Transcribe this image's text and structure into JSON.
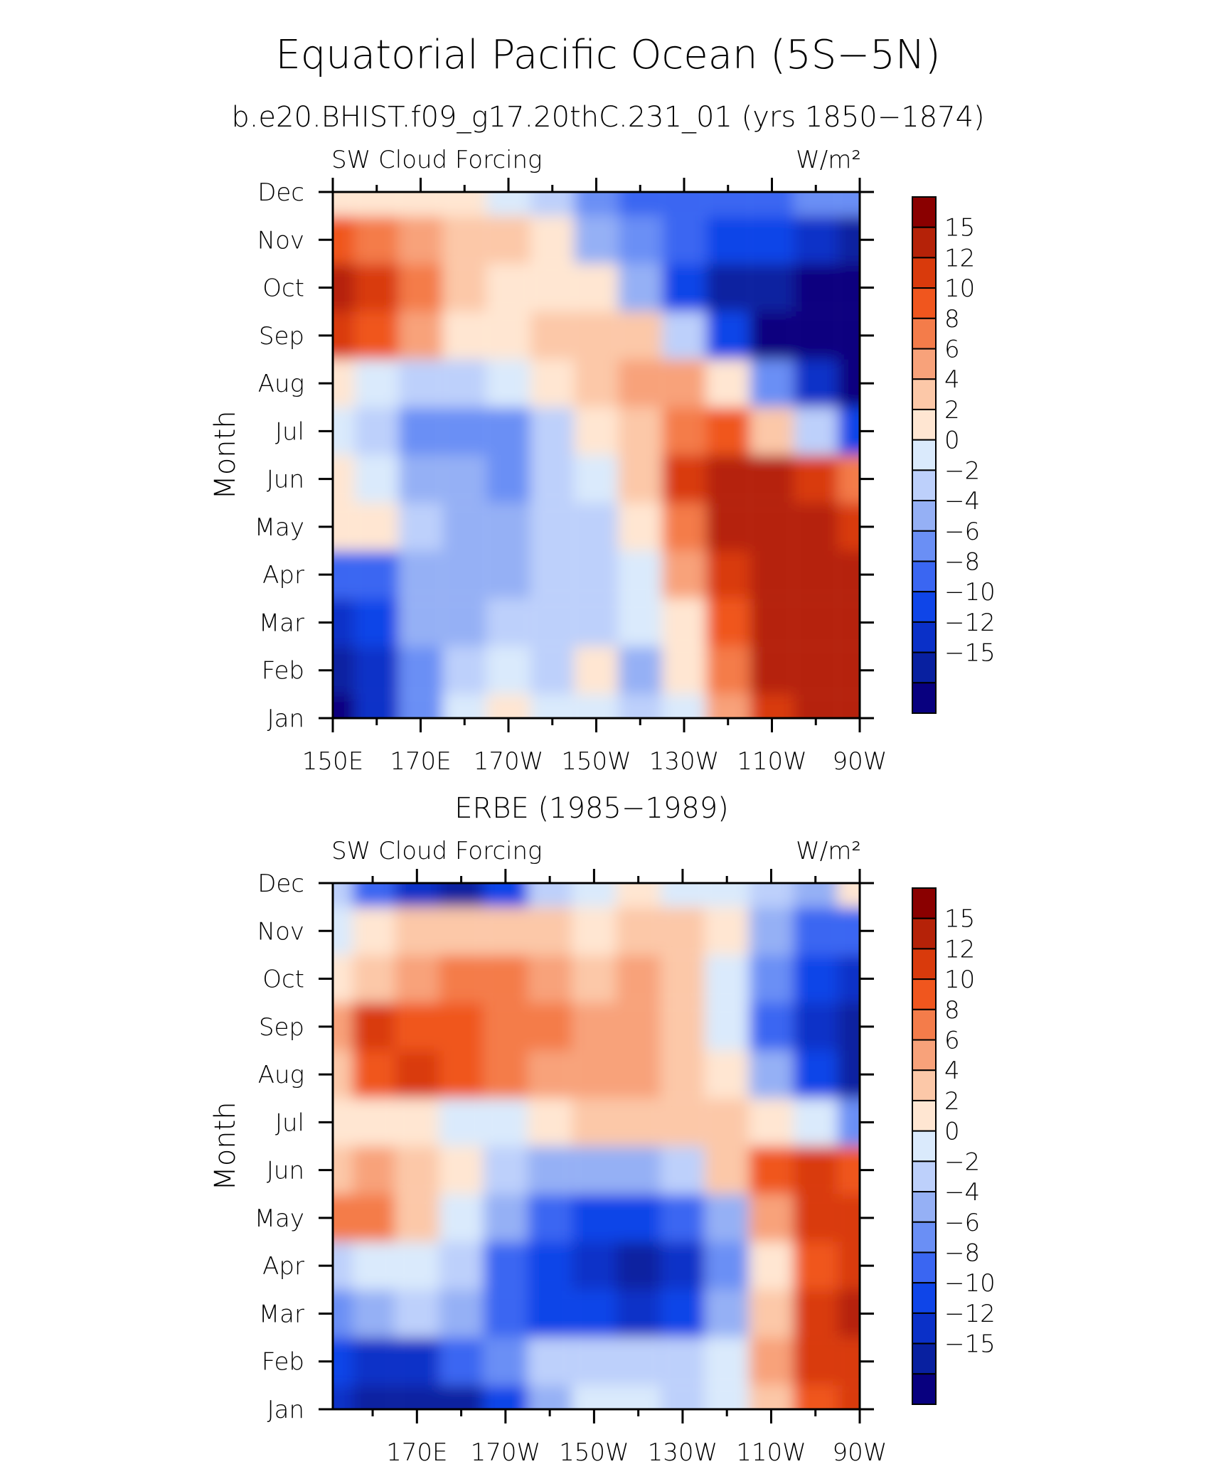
{
  "figure": {
    "title": "Equatorial Pacific Ocean (5S−5N)",
    "subtitle": "b.e20.BHIST.f09_g17.20thC.231_01 (yrs 1850−1874)",
    "panel2_title": "ERBE (1985−1989)"
  },
  "colors": {
    "levels": [
      "#08007f",
      "#0820a0",
      "#0a30c8",
      "#0f45e8",
      "#3a66f2",
      "#6a8ff5",
      "#95b0f5",
      "#bdd0fb",
      "#daeafc",
      "#ffe6d2",
      "#fcc8a8",
      "#f8a27a",
      "#f47c4a",
      "#f0561e",
      "#d93a0c",
      "#b52208",
      "#8a0000"
    ]
  },
  "chart_data": [
    {
      "type": "heatmap",
      "panel_title": "",
      "left_label": "SW Cloud Forcing",
      "right_label": "W/m²",
      "ylabel": "Month",
      "xlabel": "",
      "y_ticks": [
        "Jan",
        "Feb",
        "Mar",
        "Apr",
        "May",
        "Jun",
        "Jul",
        "Aug",
        "Sep",
        "Oct",
        "Nov",
        "Dec"
      ],
      "x_ticks": [
        "150E",
        "170E",
        "170W",
        "150W",
        "130W",
        "110W",
        "90W"
      ],
      "x_tick_lon": [
        150,
        170,
        190,
        210,
        230,
        250,
        270
      ],
      "xlim": [
        150,
        270
      ],
      "colorbar_labels": [
        "15",
        "12",
        "10",
        "8",
        "6",
        "4",
        "2",
        "0",
        "−2",
        "−4",
        "−6",
        "−8",
        "−10",
        "−12",
        "−15"
      ],
      "lon": [
        150,
        160,
        170,
        180,
        190,
        200,
        210,
        220,
        230,
        240,
        250,
        260,
        270
      ],
      "months": [
        "Jan",
        "Feb",
        "Mar",
        "Apr",
        "May",
        "Jun",
        "Jul",
        "Aug",
        "Sep",
        "Oct",
        "Nov",
        "Dec"
      ],
      "values": [
        [
          -16,
          -11,
          -6,
          1,
          2,
          0,
          1,
          -1,
          1,
          7,
          13,
          17,
          18
        ],
        [
          -15,
          -12,
          -5,
          -1,
          1,
          -1,
          2,
          -3,
          2,
          9,
          15,
          17,
          18
        ],
        [
          -11,
          -9,
          -4,
          -3,
          -2,
          -2,
          -1,
          0,
          3,
          11,
          16,
          17,
          17
        ],
        [
          -7,
          -8,
          -3,
          -3,
          -4,
          -2,
          -1,
          1,
          6,
          13,
          18,
          18,
          16
        ],
        [
          3,
          2,
          -2,
          -3,
          -4,
          -2,
          -1,
          2,
          9,
          16,
          18,
          17,
          13
        ],
        [
          3,
          1,
          -3,
          -4,
          -5,
          -1,
          1,
          5,
          12,
          17,
          16,
          13,
          8
        ],
        [
          1,
          -2,
          -5,
          -6,
          -6,
          -1,
          2,
          5,
          9,
          10,
          5,
          -2,
          -10
        ],
        [
          3,
          1,
          -1,
          -1,
          1,
          2,
          4,
          6,
          7,
          2,
          -6,
          -12,
          -16
        ],
        [
          14,
          11,
          6,
          3,
          2,
          4,
          5,
          4,
          -2,
          -10,
          -16,
          -17,
          -17
        ],
        [
          17,
          13,
          8,
          4,
          3,
          3,
          2,
          -3,
          -9,
          -13,
          -15,
          -16,
          -17
        ],
        [
          10,
          9,
          6,
          4,
          4,
          2,
          -3,
          -6,
          -8,
          -9,
          -10,
          -12,
          -13
        ],
        [
          3,
          3,
          2,
          2,
          1,
          -1,
          -6,
          -7,
          -7,
          -7,
          -7,
          -6,
          -5
        ]
      ],
      "x_tick_positions": [
        150,
        170,
        190,
        210,
        230,
        250,
        270
      ]
    },
    {
      "type": "heatmap",
      "panel_title": "ERBE (1985−1989)",
      "left_label": "SW Cloud Forcing",
      "right_label": "W/m²",
      "ylabel": "Month",
      "xlabel": "",
      "y_ticks": [
        "Jan",
        "Feb",
        "Mar",
        "Apr",
        "May",
        "Jun",
        "Jul",
        "Aug",
        "Sep",
        "Oct",
        "Nov",
        "Dec"
      ],
      "x_ticks": [
        "170E",
        "170W",
        "150W",
        "130W",
        "110W",
        "90W"
      ],
      "x_tick_lon": [
        170,
        190,
        210,
        230,
        250,
        270
      ],
      "xlim": [
        151,
        270
      ],
      "colorbar_labels": [
        "15",
        "12",
        "10",
        "8",
        "6",
        "4",
        "2",
        "0",
        "−2",
        "−4",
        "−6",
        "−8",
        "−10",
        "−12",
        "−15"
      ],
      "lon": [
        151,
        160,
        170,
        180,
        190,
        200,
        210,
        220,
        230,
        240,
        250,
        260,
        270
      ],
      "months": [
        "Jan",
        "Feb",
        "Mar",
        "Apr",
        "May",
        "Jun",
        "Jul",
        "Aug",
        "Sep",
        "Oct",
        "Nov",
        "Dec"
      ],
      "values": [
        [
          -12,
          -13,
          -14,
          -13,
          -10,
          -4,
          1,
          0,
          -1,
          0,
          4,
          10,
          12
        ],
        [
          -10,
          -12,
          -12,
          -8,
          -5,
          -2,
          -1,
          -1,
          -1,
          1,
          6,
          12,
          14
        ],
        [
          -6,
          -3,
          -2,
          -3,
          -7,
          -9,
          -10,
          -11,
          -10,
          -4,
          4,
          12,
          16
        ],
        [
          -1,
          0,
          1,
          -1,
          -7,
          -9,
          -12,
          -13,
          -12,
          -6,
          3,
          11,
          13
        ],
        [
          9,
          8,
          5,
          1,
          -4,
          -7,
          -9,
          -10,
          -8,
          -3,
          6,
          12,
          14
        ],
        [
          4,
          6,
          4,
          2,
          -2,
          -3,
          -4,
          -4,
          -1,
          4,
          11,
          13,
          10
        ],
        [
          2,
          3,
          2,
          1,
          1,
          2,
          4,
          5,
          4,
          4,
          3,
          0,
          -6
        ],
        [
          5,
          11,
          12,
          10,
          8,
          7,
          6,
          6,
          5,
          2,
          -3,
          -9,
          -14
        ],
        [
          7,
          12,
          11,
          10,
          9,
          8,
          7,
          6,
          4,
          0,
          -8,
          -12,
          -15
        ],
        [
          2,
          5,
          7,
          9,
          8,
          6,
          5,
          6,
          4,
          0,
          -6,
          -10,
          -12
        ],
        [
          0,
          3,
          4,
          5,
          5,
          4,
          3,
          4,
          4,
          2,
          -3,
          -7,
          -8
        ],
        [
          -2,
          -8,
          -12,
          -13,
          -10,
          -1,
          1,
          2,
          1,
          0,
          -2,
          -3,
          2
        ]
      ],
      "x_tick_positions": [
        170,
        190,
        210,
        230,
        250,
        270
      ]
    }
  ]
}
